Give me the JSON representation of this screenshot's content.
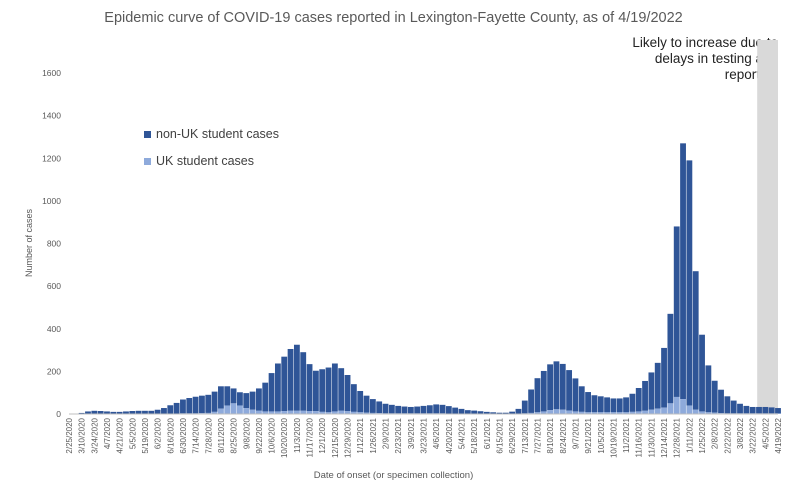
{
  "chart_data": {
    "type": "bar",
    "stacked": true,
    "title": "Epidemic curve of COVID-19 cases reported in Lexington-Fayette County, as of 4/19/2022",
    "xlabel": "Date of onset (or specimen collection)",
    "ylabel": "Number of cases",
    "ylim": [
      0,
      1600
    ],
    "yticks": [
      0,
      200,
      400,
      600,
      800,
      1000,
      1200,
      1400,
      1600
    ],
    "grid": false,
    "legend_position": "upper-left",
    "annotation": "Likely to increase due to delays in testing and reporting",
    "x_start": "2/25/2020",
    "x_end": "4/19/2022",
    "shaded_region": {
      "start": "3/27/2022",
      "end": "4/19/2022"
    },
    "x_tick_labels": [
      "2/25/2020",
      "3/10/2020",
      "3/24/2020",
      "4/7/2020",
      "4/21/2020",
      "5/5/2020",
      "5/19/2020",
      "6/2/2020",
      "6/16/2020",
      "6/30/2020",
      "7/14/2020",
      "7/28/2020",
      "8/11/2020",
      "8/25/2020",
      "9/8/2020",
      "9/22/2020",
      "10/6/2020",
      "10/20/2020",
      "11/3/2020",
      "11/17/2020",
      "12/1/2020",
      "12/15/2020",
      "12/29/2020",
      "1/12/2021",
      "1/26/2021",
      "2/9/2021",
      "2/23/2021",
      "3/9/2021",
      "3/23/2021",
      "4/6/2021",
      "4/20/2021",
      "5/4/2021",
      "5/18/2021",
      "6/1/2021",
      "6/15/2021",
      "6/29/2021",
      "7/13/2021",
      "7/27/2021",
      "8/10/2021",
      "8/24/2021",
      "9/7/2021",
      "9/21/2021",
      "10/5/2021",
      "10/19/2021",
      "11/2/2021",
      "11/16/2021",
      "11/30/2021",
      "12/14/2021",
      "12/28/2021",
      "1/11/2022",
      "1/25/2022",
      "2/8/2022",
      "2/22/2022",
      "3/8/2022",
      "3/22/2022",
      "4/5/2022",
      "4/19/2022"
    ],
    "series": [
      {
        "name": "non-UK student cases",
        "color": "#2f5597",
        "weekly_x": [
          "2/25/2020",
          "3/3/2020",
          "3/10/2020",
          "3/17/2020",
          "3/24/2020",
          "3/31/2020",
          "4/7/2020",
          "4/14/2020",
          "4/21/2020",
          "4/28/2020",
          "5/5/2020",
          "5/12/2020",
          "5/19/2020",
          "5/26/2020",
          "6/2/2020",
          "6/9/2020",
          "6/16/2020",
          "6/23/2020",
          "6/30/2020",
          "7/7/2020",
          "7/14/2020",
          "7/21/2020",
          "7/28/2020",
          "8/4/2020",
          "8/11/2020",
          "8/18/2020",
          "8/25/2020",
          "9/1/2020",
          "9/8/2020",
          "9/15/2020",
          "9/22/2020",
          "9/29/2020",
          "10/6/2020",
          "10/13/2020",
          "10/20/2020",
          "10/27/2020",
          "11/3/2020",
          "11/10/2020",
          "11/17/2020",
          "11/24/2020",
          "12/1/2020",
          "12/8/2020",
          "12/15/2020",
          "12/22/2020",
          "12/29/2020",
          "1/5/2021",
          "1/12/2021",
          "1/19/2021",
          "1/26/2021",
          "2/2/2021",
          "2/9/2021",
          "2/16/2021",
          "2/23/2021",
          "3/2/2021",
          "3/9/2021",
          "3/16/2021",
          "3/23/2021",
          "3/30/2021",
          "4/6/2021",
          "4/13/2021",
          "4/20/2021",
          "4/27/2021",
          "5/4/2021",
          "5/11/2021",
          "5/18/2021",
          "5/25/2021",
          "6/1/2021",
          "6/8/2021",
          "6/15/2021",
          "6/22/2021",
          "6/29/2021",
          "7/6/2021",
          "7/13/2021",
          "7/20/2021",
          "7/27/2021",
          "8/3/2021",
          "8/10/2021",
          "8/17/2021",
          "8/24/2021",
          "8/31/2021",
          "9/7/2021",
          "9/14/2021",
          "9/21/2021",
          "9/28/2021",
          "10/5/2021",
          "10/12/2021",
          "10/19/2021",
          "10/26/2021",
          "11/2/2021",
          "11/9/2021",
          "11/16/2021",
          "11/23/2021",
          "11/30/2021",
          "12/7/2021",
          "12/14/2021",
          "12/21/2021",
          "12/28/2021",
          "1/4/2022",
          "1/11/2022",
          "1/18/2022",
          "1/25/2022",
          "2/1/2022",
          "2/8/2022",
          "2/15/2022",
          "2/22/2022",
          "3/1/2022",
          "3/8/2022",
          "3/15/2022",
          "3/22/2022",
          "3/29/2022",
          "4/5/2022",
          "4/12/2022",
          "4/19/2022"
        ],
        "weekly_y": [
          0,
          2,
          5,
          12,
          15,
          14,
          12,
          10,
          10,
          12,
          14,
          15,
          15,
          15,
          20,
          28,
          40,
          50,
          65,
          72,
          78,
          82,
          85,
          95,
          105,
          90,
          70,
          62,
          70,
          85,
          105,
          135,
          180,
          225,
          255,
          290,
          310,
          275,
          220,
          190,
          200,
          210,
          225,
          200,
          170,
          130,
          100,
          80,
          65,
          55,
          45,
          40,
          35,
          32,
          30,
          32,
          35,
          38,
          42,
          40,
          35,
          28,
          22,
          17,
          15,
          12,
          10,
          8,
          6,
          6,
          10,
          22,
          60,
          110,
          160,
          190,
          215,
          225,
          215,
          190,
          155,
          120,
          95,
          80,
          75,
          70,
          65,
          65,
          70,
          85,
          110,
          140,
          175,
          215,
          280,
          420,
          800,
          1200,
          1150,
          650,
          360,
          220,
          150,
          110,
          80,
          60,
          45,
          35,
          30,
          30,
          30,
          28,
          25
        ]
      },
      {
        "name": "UK student cases",
        "color": "#8eaadb",
        "weekly_x": [
          "2/25/2020",
          "3/3/2020",
          "3/10/2020",
          "3/17/2020",
          "3/24/2020",
          "3/31/2020",
          "4/7/2020",
          "4/14/2020",
          "4/21/2020",
          "4/28/2020",
          "5/5/2020",
          "5/12/2020",
          "5/19/2020",
          "5/26/2020",
          "6/2/2020",
          "6/9/2020",
          "6/16/2020",
          "6/23/2020",
          "6/30/2020",
          "7/7/2020",
          "7/14/2020",
          "7/21/2020",
          "7/28/2020",
          "8/4/2020",
          "8/11/2020",
          "8/18/2020",
          "8/25/2020",
          "9/1/2020",
          "9/8/2020",
          "9/15/2020",
          "9/22/2020",
          "9/29/2020",
          "10/6/2020",
          "10/13/2020",
          "10/20/2020",
          "10/27/2020",
          "11/3/2020",
          "11/10/2020",
          "11/17/2020",
          "11/24/2020",
          "12/1/2020",
          "12/8/2020",
          "12/15/2020",
          "12/22/2020",
          "12/29/2020",
          "1/5/2021",
          "1/12/2021",
          "1/19/2021",
          "1/26/2021",
          "2/2/2021",
          "2/9/2021",
          "2/16/2021",
          "2/23/2021",
          "3/2/2021",
          "3/9/2021",
          "3/16/2021",
          "3/23/2021",
          "3/30/2021",
          "4/6/2021",
          "4/13/2021",
          "4/20/2021",
          "4/27/2021",
          "5/4/2021",
          "5/11/2021",
          "5/18/2021",
          "5/25/2021",
          "6/1/2021",
          "6/8/2021",
          "6/15/2021",
          "6/22/2021",
          "6/29/2021",
          "7/6/2021",
          "7/13/2021",
          "7/20/2021",
          "7/27/2021",
          "8/3/2021",
          "8/10/2021",
          "8/17/2021",
          "8/24/2021",
          "8/31/2021",
          "9/7/2021",
          "9/14/2021",
          "9/21/2021",
          "9/28/2021",
          "10/5/2021",
          "10/12/2021",
          "10/19/2021",
          "10/26/2021",
          "11/2/2021",
          "11/9/2021",
          "11/16/2021",
          "11/23/2021",
          "11/30/2021",
          "12/7/2021",
          "12/14/2021",
          "12/21/2021",
          "12/28/2021",
          "1/4/2022",
          "1/11/2022",
          "1/18/2022",
          "1/25/2022",
          "2/1/2022",
          "2/8/2022",
          "2/15/2022",
          "2/22/2022",
          "3/1/2022",
          "3/8/2022",
          "3/15/2022",
          "3/22/2022",
          "3/29/2022",
          "4/5/2022",
          "4/12/2022",
          "4/19/2022"
        ],
        "weekly_y": [
          0,
          0,
          0,
          0,
          0,
          0,
          0,
          0,
          0,
          0,
          0,
          0,
          0,
          0,
          0,
          0,
          1,
          2,
          3,
          3,
          3,
          4,
          5,
          10,
          25,
          40,
          50,
          40,
          28,
          20,
          15,
          12,
          12,
          12,
          14,
          15,
          15,
          15,
          14,
          13,
          10,
          8,
          12,
          15,
          13,
          10,
          8,
          6,
          5,
          4,
          3,
          3,
          3,
          3,
          3,
          3,
          3,
          3,
          3,
          3,
          2,
          2,
          2,
          1,
          1,
          1,
          0,
          0,
          0,
          0,
          1,
          2,
          3,
          5,
          8,
          12,
          18,
          22,
          20,
          16,
          12,
          10,
          8,
          8,
          8,
          8,
          8,
          8,
          8,
          10,
          12,
          15,
          20,
          25,
          30,
          50,
          80,
          70,
          40,
          20,
          12,
          8,
          6,
          4,
          3,
          3,
          3,
          3,
          3,
          3,
          3,
          3,
          3
        ]
      }
    ]
  }
}
